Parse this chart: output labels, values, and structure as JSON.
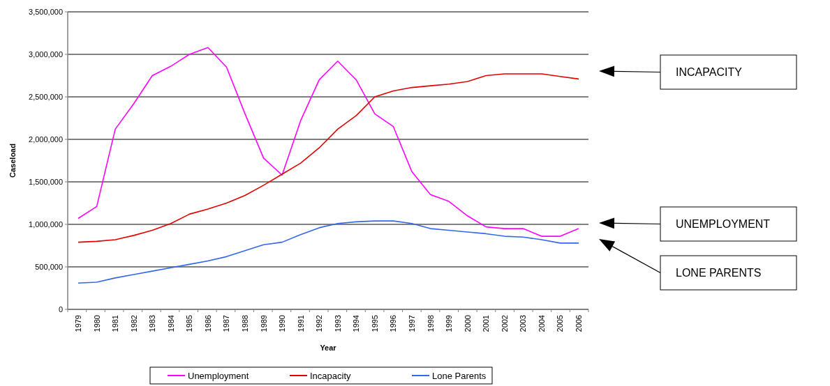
{
  "chart_data": {
    "type": "line",
    "xlabel": "Year",
    "ylabel": "Caseload",
    "categories": [
      "1979",
      "1980",
      "1981",
      "1982",
      "1983",
      "1984",
      "1985",
      "1986",
      "1987",
      "1988",
      "1989",
      "1990",
      "1991",
      "1992",
      "1993",
      "1994",
      "1995",
      "1996",
      "1997",
      "1998",
      "1999",
      "2000",
      "2001",
      "2002",
      "2003",
      "2004",
      "2005",
      "2006"
    ],
    "series": [
      {
        "name": "Unemployment",
        "color": "#ff00ff",
        "values": [
          1070000,
          1210000,
          2120000,
          2420000,
          2750000,
          2860000,
          3000000,
          3080000,
          2850000,
          2300000,
          1780000,
          1580000,
          2220000,
          2700000,
          2920000,
          2700000,
          2300000,
          2150000,
          1620000,
          1350000,
          1270000,
          1100000,
          970000,
          950000,
          950000,
          860000,
          860000,
          950000
        ]
      },
      {
        "name": "Incapacity",
        "color": "#e00000",
        "values": [
          790000,
          800000,
          820000,
          870000,
          930000,
          1010000,
          1120000,
          1180000,
          1250000,
          1340000,
          1460000,
          1590000,
          1720000,
          1900000,
          2120000,
          2280000,
          2500000,
          2570000,
          2610000,
          2630000,
          2650000,
          2680000,
          2750000,
          2770000,
          2770000,
          2770000,
          2740000,
          2710000
        ]
      },
      {
        "name": "Lone Parents",
        "color": "#3366ee",
        "values": [
          310000,
          320000,
          370000,
          410000,
          450000,
          490000,
          530000,
          570000,
          620000,
          690000,
          760000,
          790000,
          880000,
          960000,
          1010000,
          1030000,
          1040000,
          1040000,
          1010000,
          950000,
          930000,
          910000,
          890000,
          860000,
          850000,
          820000,
          780000,
          780000
        ]
      }
    ],
    "ylim": [
      0,
      3500000
    ],
    "yticks": [
      0,
      {
        "value": 500000,
        "label": "500,000"
      },
      {
        "value": 1000000,
        "label": "1,000,000"
      },
      {
        "value": 1500000,
        "label": "1,500,000"
      },
      {
        "value": 2000000,
        "label": "2,000,000"
      },
      {
        "value": 2500000,
        "label": "2,500,000"
      },
      {
        "value": 3000000,
        "label": "3,000,000"
      },
      {
        "value": 3500000,
        "label": "3,500,000"
      }
    ],
    "grid": "y",
    "legend": "bottom",
    "marker": "none",
    "line_style": "solid",
    "annotations": [
      "INCAPACITY",
      "UNEMPLOYMENT",
      "LONE PARENTS"
    ]
  }
}
